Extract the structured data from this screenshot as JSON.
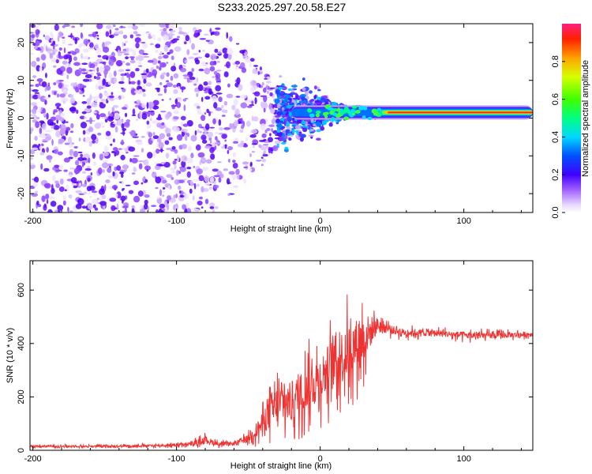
{
  "title": "S233.2025.297.20.58.E27",
  "colorbar": {
    "label": "Normalized spectral amplitude",
    "ticks": [
      "0.0",
      "0.2",
      "0.4",
      "0.6",
      "0.8"
    ],
    "tick_values": [
      0.0,
      0.2,
      0.4,
      0.6,
      0.8
    ],
    "range": [
      0.0,
      1.0
    ]
  },
  "chart_data": [
    {
      "type": "heatmap",
      "name": "spectrogram",
      "xlabel": "Height of straight line (km)",
      "ylabel": "Frequency (Hz)",
      "xlim": [
        -202,
        148
      ],
      "ylim": [
        -25,
        25
      ],
      "xticks": [
        -200,
        -100,
        0,
        100
      ],
      "xtick_labels": [
        "-200",
        "-100",
        "0",
        "100"
      ],
      "yticks": [
        -20,
        -10,
        0,
        10,
        20
      ],
      "ytick_labels": [
        "-20",
        "-10",
        "0",
        "10",
        "20"
      ],
      "description_points": {
        "noise_region_x": [
          -202,
          -30
        ],
        "transition_x": [
          -30,
          40
        ],
        "carrier_frequency_hz": 1.5,
        "carrier_region_x": [
          40,
          148
        ]
      }
    },
    {
      "type": "line",
      "name": "snr",
      "xlabel": "Height of straight line (km)",
      "ylabel": "SNR (10 * v/v)",
      "xlim": [
        -202,
        148
      ],
      "ylim": [
        0,
        710
      ],
      "xticks": [
        -200,
        -100,
        0,
        100
      ],
      "xtick_labels": [
        "-200",
        "-100",
        "0",
        "100"
      ],
      "yticks": [
        0,
        200,
        400,
        600
      ],
      "ytick_labels": [
        "0",
        "200",
        "400",
        "600"
      ],
      "color": "#ee3333",
      "envelope": {
        "x": [
          -202,
          -150,
          -110,
          -90,
          -80,
          -70,
          -60,
          -50,
          -40,
          -35,
          -30,
          -20,
          -10,
          0,
          10,
          20,
          30,
          40,
          50,
          60,
          80,
          100,
          120,
          148
        ],
        "mean": [
          15,
          15,
          18,
          22,
          40,
          22,
          25,
          45,
          100,
          150,
          170,
          180,
          230,
          270,
          330,
          370,
          420,
          470,
          450,
          440,
          440,
          430,
          430,
          435
        ],
        "amp": [
          8,
          8,
          10,
          14,
          30,
          14,
          16,
          30,
          90,
          140,
          160,
          170,
          180,
          190,
          220,
          230,
          200,
          60,
          35,
          30,
          25,
          30,
          25,
          20
        ]
      }
    }
  ]
}
